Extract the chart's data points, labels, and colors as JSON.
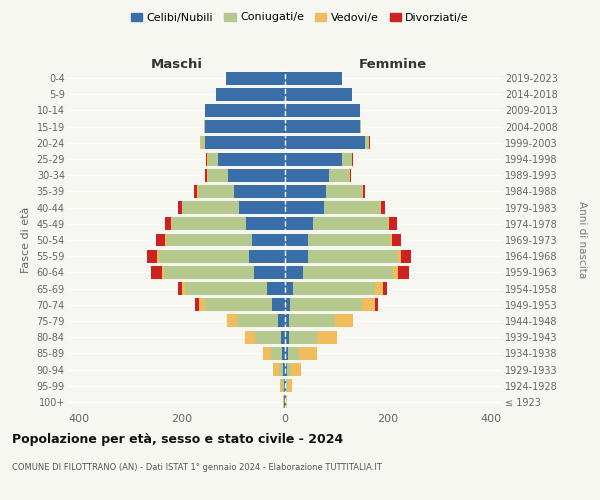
{
  "age_groups": [
    "100+",
    "95-99",
    "90-94",
    "85-89",
    "80-84",
    "75-79",
    "70-74",
    "65-69",
    "60-64",
    "55-59",
    "50-54",
    "45-49",
    "40-44",
    "35-39",
    "30-34",
    "25-29",
    "20-24",
    "15-19",
    "10-14",
    "5-9",
    "0-4"
  ],
  "birth_years": [
    "≤ 1923",
    "1924-1928",
    "1929-1933",
    "1934-1938",
    "1939-1943",
    "1944-1948",
    "1949-1953",
    "1954-1958",
    "1959-1963",
    "1964-1968",
    "1969-1973",
    "1974-1978",
    "1979-1983",
    "1984-1988",
    "1989-1993",
    "1994-1998",
    "1999-2003",
    "2004-2008",
    "2009-2013",
    "2014-2018",
    "2019-2023"
  ],
  "colors": {
    "celibi": "#3a6ea8",
    "coniugati": "#b5c98e",
    "vedovi": "#f0bc5e",
    "divorziati": "#cc2222"
  },
  "maschi": {
    "celibi": [
      1,
      2,
      3,
      5,
      8,
      14,
      25,
      35,
      60,
      70,
      65,
      75,
      90,
      100,
      110,
      130,
      155,
      155,
      155,
      135,
      115
    ],
    "coniugati": [
      1,
      3,
      8,
      22,
      50,
      80,
      130,
      160,
      175,
      175,
      165,
      145,
      110,
      70,
      40,
      20,
      8,
      3,
      1,
      0,
      0
    ],
    "vedovi": [
      1,
      4,
      12,
      15,
      20,
      18,
      12,
      5,
      5,
      4,
      3,
      2,
      1,
      1,
      1,
      1,
      2,
      0,
      0,
      0,
      0
    ],
    "divorziati": [
      0,
      0,
      0,
      0,
      0,
      0,
      8,
      8,
      20,
      20,
      18,
      12,
      8,
      5,
      4,
      2,
      1,
      0,
      0,
      0,
      0
    ]
  },
  "femmine": {
    "celibi": [
      1,
      2,
      3,
      5,
      7,
      8,
      10,
      15,
      35,
      45,
      45,
      55,
      75,
      80,
      85,
      110,
      155,
      145,
      145,
      130,
      110
    ],
    "coniugati": [
      0,
      3,
      8,
      22,
      55,
      90,
      140,
      160,
      175,
      175,
      160,
      145,
      110,
      70,
      40,
      20,
      8,
      2,
      1,
      0,
      0
    ],
    "vedovi": [
      2,
      8,
      20,
      35,
      40,
      35,
      25,
      15,
      10,
      5,
      4,
      2,
      2,
      1,
      1,
      1,
      1,
      0,
      0,
      0,
      0
    ],
    "divorziati": [
      0,
      0,
      0,
      0,
      0,
      0,
      5,
      8,
      22,
      20,
      16,
      16,
      8,
      4,
      3,
      2,
      1,
      0,
      0,
      0,
      0
    ]
  },
  "title": "Popolazione per età, sesso e stato civile - 2024",
  "subtitle": "COMUNE DI FILOTTRANO (AN) - Dati ISTAT 1° gennaio 2024 - Elaborazione TUTTITALIA.IT",
  "label_maschi": "Maschi",
  "label_femmine": "Femmine",
  "ylabel": "Fasce di età",
  "ylabel_right": "Anni di nascita",
  "legend_labels": [
    "Celibi/Nubili",
    "Coniugati/e",
    "Vedovi/e",
    "Divorziati/e"
  ],
  "xlim": 420,
  "bg_color": "#f7f7f2"
}
